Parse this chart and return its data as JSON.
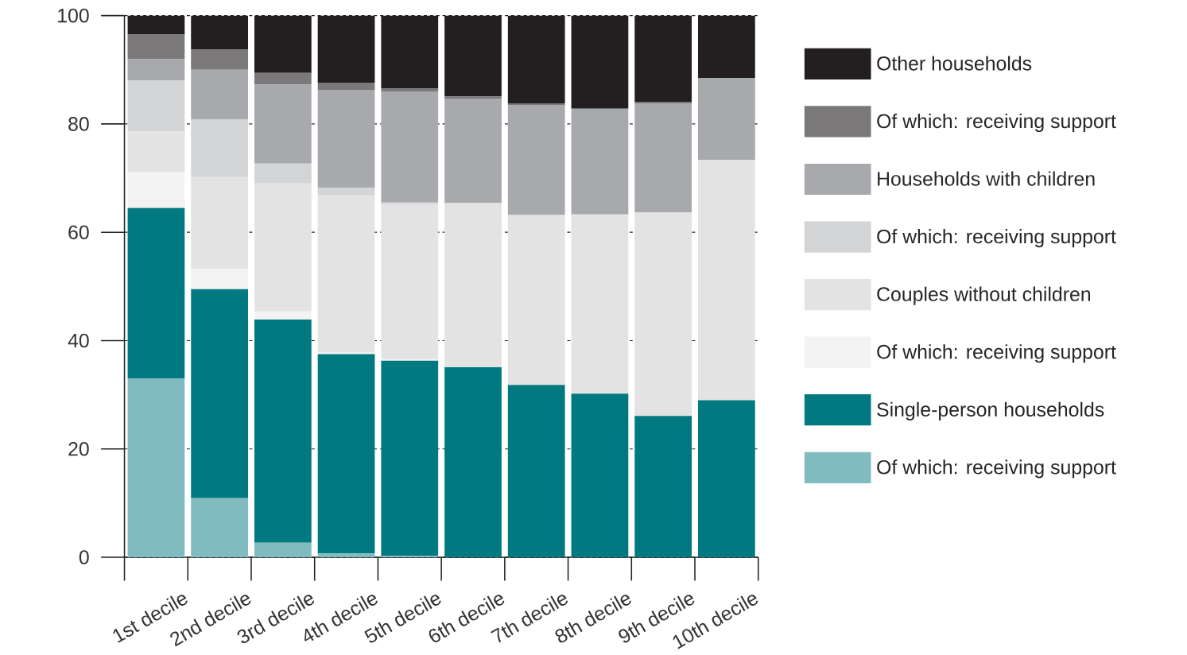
{
  "chart_data": {
    "type": "bar",
    "stacked": true,
    "categories": [
      "1st decile",
      "2nd decile",
      "3rd decile",
      "4th decile",
      "5th decile",
      "6th decile",
      "7th decile",
      "8th decile",
      "9th decile",
      "10th decile"
    ],
    "series": [
      {
        "name": "Of which: receiving support",
        "color": "#80bcbf",
        "values": [
          33.0,
          10.9,
          2.7,
          0.7,
          0.3,
          0,
          0,
          0,
          0,
          0
        ]
      },
      {
        "name": "Single-person households",
        "color": "#007a80",
        "values": [
          31.5,
          38.6,
          41.2,
          36.8,
          36.0,
          35.1,
          31.8,
          30.2,
          26.1,
          29.0
        ]
      },
      {
        "name": "Of which: receiving support",
        "color": "#f3f3f3",
        "values": [
          6.6,
          3.7,
          1.5,
          0.3,
          0.3,
          0,
          0,
          0,
          0,
          0
        ]
      },
      {
        "name": "Couples without children",
        "color": "#e3e3e3",
        "values": [
          7.5,
          17.0,
          23.6,
          29.0,
          28.6,
          30.3,
          31.4,
          33.1,
          37.6,
          44.4
        ]
      },
      {
        "name": "Of which: receiving support",
        "color": "#d3d4d5",
        "values": [
          9.4,
          10.6,
          3.7,
          1.4,
          0.3,
          0,
          0,
          0,
          0,
          0
        ]
      },
      {
        "name": "Households with children",
        "color": "#a7a9ac",
        "values": [
          4.0,
          9.2,
          14.6,
          18.1,
          20.5,
          19.3,
          20.3,
          19.5,
          20.1,
          15.1
        ]
      },
      {
        "name": "Of which: receiving support",
        "color": "#7b7879",
        "values": [
          4.5,
          3.7,
          2.1,
          1.3,
          0.5,
          0.4,
          0.3,
          0,
          0.3,
          0
        ]
      },
      {
        "name": "Other households",
        "color": "#231f20",
        "values": [
          3.5,
          6.3,
          10.6,
          12.4,
          13.5,
          14.9,
          16.2,
          17.2,
          15.9,
          11.5
        ]
      }
    ],
    "ylim": [
      0,
      100
    ],
    "yticks": [
      0,
      20,
      40,
      60,
      80,
      100
    ],
    "grid": "y",
    "legend": "right"
  }
}
